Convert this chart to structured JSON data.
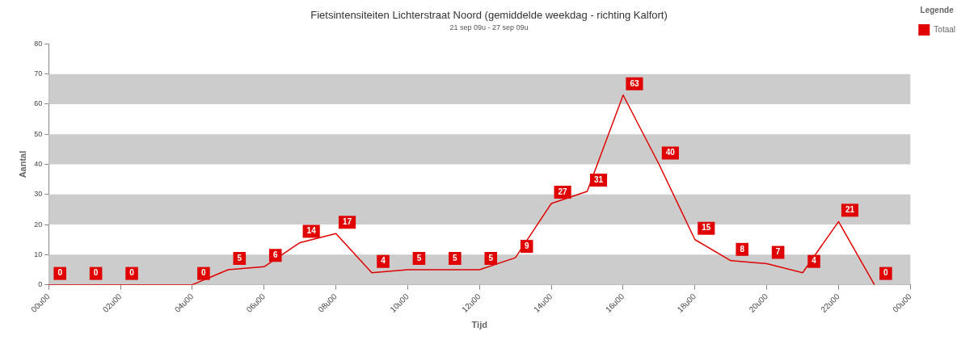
{
  "chart_data": {
    "type": "line",
    "title": "Fietsintensiteiten Lichterstraat Noord (gemiddelde weekdag - richting Kalfort)",
    "subtitle": "21 sep 09u - 27 sep 09u",
    "xlabel": "Tijd",
    "ylabel": "Aantal",
    "legend_title": "Legende",
    "legend": "top right",
    "grid": false,
    "marker": "none",
    "line_style": "solid",
    "categories": [
      "00u00",
      null,
      "02u00",
      null,
      "04u00",
      null,
      "06u00",
      null,
      "08u00",
      null,
      "10u00",
      null,
      "12u00",
      null,
      "14u00",
      null,
      "16u00",
      null,
      "18u00",
      null,
      "20u00",
      null,
      "22u00",
      null,
      "00u00"
    ],
    "series": [
      {
        "name": "Totaal",
        "color": "#e00000",
        "values": [
          0,
          0,
          0,
          0,
          0,
          5,
          6,
          14,
          17,
          4,
          5,
          5,
          5,
          9,
          27,
          31,
          63,
          40,
          15,
          8,
          7,
          4,
          21,
          0,
          null
        ],
        "value_labels": [
          "0",
          "0",
          "0",
          null,
          "0",
          "5",
          "6",
          "14",
          "17",
          "4",
          "5",
          "5",
          "5",
          "9",
          "27",
          "31",
          "63",
          "40",
          "15",
          "8",
          "7",
          "4",
          "21",
          "0",
          null
        ]
      }
    ],
    "ylim": [
      0,
      80
    ],
    "yticks": [
      0,
      10,
      20,
      30,
      40,
      50,
      60,
      70,
      80
    ],
    "bands": [
      {
        "axis": "y",
        "from": 0,
        "to": 10,
        "color": "#cccccc"
      },
      {
        "axis": "y",
        "from": 20,
        "to": 30,
        "color": "#cccccc"
      },
      {
        "axis": "y",
        "from": 40,
        "to": 50,
        "color": "#cccccc"
      },
      {
        "axis": "y",
        "from": 60,
        "to": 70,
        "color": "#cccccc"
      }
    ]
  }
}
